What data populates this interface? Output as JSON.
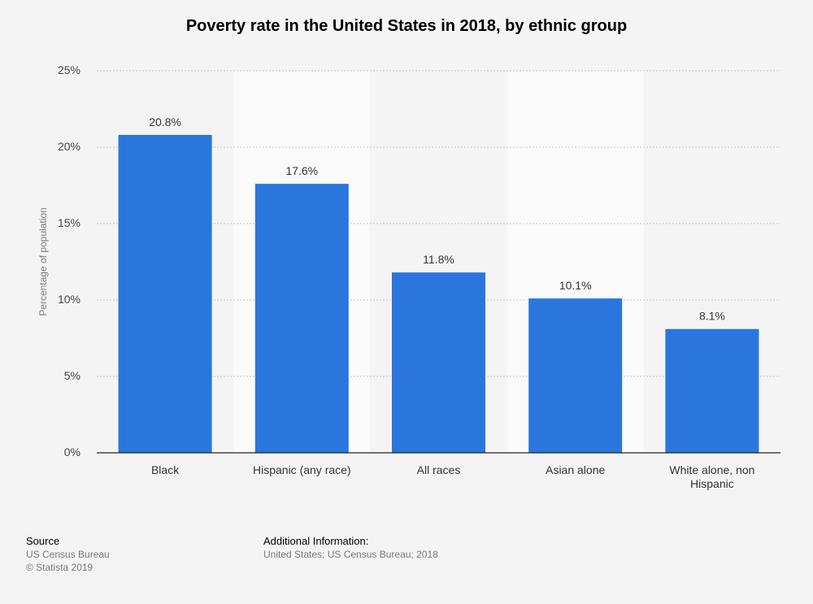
{
  "chart_data": {
    "type": "bar",
    "title": "Poverty rate in the United States in 2018, by ethnic group",
    "ylabel": "Percentage of population",
    "xlabel": "",
    "categories": [
      "Black",
      "Hispanic (any race)",
      "All races",
      "Asian alone",
      "White alone, non Hispanic"
    ],
    "values": [
      20.8,
      17.6,
      11.8,
      10.1,
      8.1
    ],
    "value_labels": [
      "20.8%",
      "17.6%",
      "11.8%",
      "10.1%",
      "8.1%"
    ],
    "ylim": [
      0,
      25
    ],
    "yticks": [
      "0%",
      "5%",
      "10%",
      "15%",
      "20%",
      "25%"
    ],
    "bar_color": "#2a76dd",
    "grid": true
  },
  "footer": {
    "source_heading": "Source",
    "source_lines": [
      "US Census Bureau",
      "© Statista 2019"
    ],
    "info_heading": "Additional Information:",
    "info_line": "United States; US Census Bureau; 2018"
  }
}
